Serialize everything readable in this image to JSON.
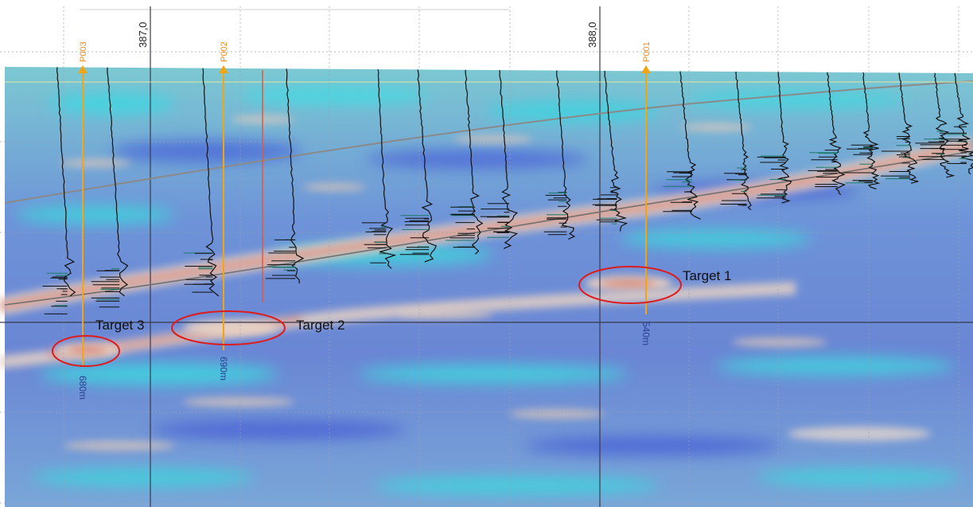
{
  "axis": {
    "easting_ticks": [
      "387,0",
      "388,0"
    ]
  },
  "wells": [
    {
      "name": "P003",
      "depth_label": "680m"
    },
    {
      "name": "P002",
      "depth_label": "690m"
    },
    {
      "name": "P001",
      "depth_label": "540m"
    }
  ],
  "targets": [
    {
      "label": "Target 1"
    },
    {
      "label": "Target 2"
    },
    {
      "label": "Target 3"
    }
  ],
  "colors": {
    "background_cyan": "#5fc9d6",
    "background_blue": "#6f7fd6",
    "reflector_red": "#d98a7a",
    "well_orange": "#f2a413",
    "target_outline": "#e01b1b",
    "depth_text": "#2a3d8f"
  }
}
